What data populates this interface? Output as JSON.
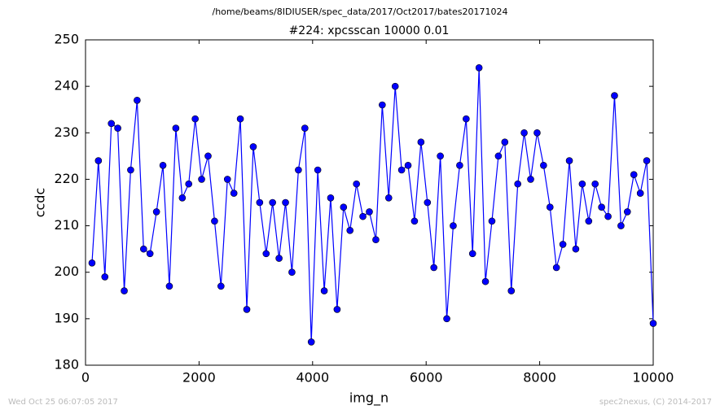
{
  "chart_data": {
    "type": "line",
    "suptitle": "/home/beams/8IDIUSER/spec_data/2017/Oct2017/bates20171024",
    "title": "#224: xpcsscan 10000 0.01",
    "x_label": "img_n",
    "y_label": "ccdc",
    "footer_left": "Wed Oct 25 06:07:05 2017",
    "footer_right": "spec2nexus, (C) 2014-2017",
    "color": "#0000ff",
    "marker": "o",
    "grid": false,
    "xlim": [
      0,
      10000
    ],
    "xticks": [
      0,
      2000,
      4000,
      6000,
      8000,
      10000
    ],
    "ylim": [
      180,
      250
    ],
    "yticks": [
      180,
      190,
      200,
      210,
      220,
      230,
      240,
      250
    ],
    "x": [
      114,
      227,
      341,
      455,
      568,
      682,
      795,
      909,
      1023,
      1136,
      1250,
      1364,
      1477,
      1591,
      1705,
      1818,
      1932,
      2045,
      2159,
      2273,
      2386,
      2500,
      2614,
      2727,
      2841,
      2955,
      3068,
      3182,
      3295,
      3409,
      3523,
      3636,
      3750,
      3864,
      3977,
      4091,
      4205,
      4318,
      4432,
      4545,
      4659,
      4773,
      4886,
      5000,
      5114,
      5227,
      5341,
      5455,
      5568,
      5682,
      5795,
      5909,
      6023,
      6136,
      6250,
      6364,
      6477,
      6591,
      6705,
      6818,
      6932,
      7045,
      7159,
      7273,
      7386,
      7500,
      7614,
      7727,
      7841,
      7955,
      8068,
      8182,
      8295,
      8409,
      8523,
      8636,
      8750,
      8864,
      8977,
      9091,
      9205,
      9318,
      9432,
      9545,
      9659,
      9773,
      9886,
      10000
    ],
    "values": [
      202,
      224,
      199,
      232,
      231,
      196,
      222,
      237,
      205,
      204,
      213,
      223,
      197,
      231,
      216,
      219,
      233,
      220,
      225,
      211,
      197,
      220,
      217,
      233,
      192,
      227,
      215,
      204,
      215,
      203,
      215,
      200,
      222,
      231,
      185,
      222,
      196,
      216,
      192,
      214,
      209,
      219,
      212,
      213,
      207,
      236,
      216,
      240,
      222,
      223,
      211,
      228,
      215,
      201,
      225,
      190,
      210,
      223,
      233,
      204,
      244,
      198,
      211,
      225,
      228,
      196,
      219,
      230,
      220,
      230,
      223,
      214,
      201,
      206,
      224,
      205,
      219,
      211,
      219,
      214,
      212,
      238,
      210,
      213,
      221,
      217,
      224,
      189
    ]
  }
}
